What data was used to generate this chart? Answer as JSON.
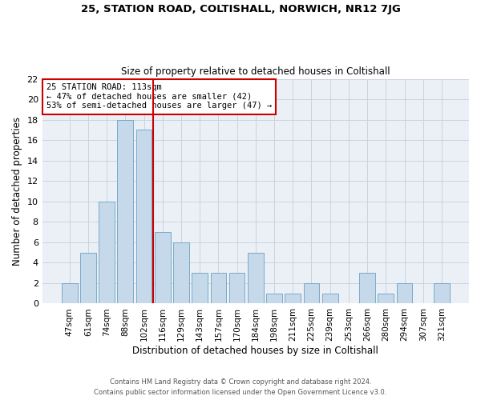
{
  "title": "25, STATION ROAD, COLTISHALL, NORWICH, NR12 7JG",
  "subtitle": "Size of property relative to detached houses in Coltishall",
  "xlabel": "Distribution of detached houses by size in Coltishall",
  "ylabel": "Number of detached properties",
  "categories": [
    "47sqm",
    "61sqm",
    "74sqm",
    "88sqm",
    "102sqm",
    "116sqm",
    "129sqm",
    "143sqm",
    "157sqm",
    "170sqm",
    "184sqm",
    "198sqm",
    "211sqm",
    "225sqm",
    "239sqm",
    "253sqm",
    "266sqm",
    "280sqm",
    "294sqm",
    "307sqm",
    "321sqm"
  ],
  "values": [
    2,
    5,
    10,
    18,
    17,
    7,
    6,
    3,
    3,
    3,
    5,
    1,
    1,
    2,
    1,
    0,
    3,
    1,
    2,
    0,
    2
  ],
  "bar_color": "#c6d9ea",
  "bar_edge_color": "#7aaac8",
  "grid_color": "#c8d4e0",
  "background_color": "#eaf0f6",
  "vline_x": 5.0,
  "vline_color": "#cc0000",
  "annotation_line1": "25 STATION ROAD: 113sqm",
  "annotation_line2": "← 47% of detached houses are smaller (42)",
  "annotation_line3": "53% of semi-detached houses are larger (47) →",
  "annotation_box_color": "white",
  "annotation_box_edge_color": "#cc0000",
  "ylim": [
    0,
    22
  ],
  "yticks": [
    0,
    2,
    4,
    6,
    8,
    10,
    12,
    14,
    16,
    18,
    20,
    22
  ],
  "footnote1": "Contains HM Land Registry data © Crown copyright and database right 2024.",
  "footnote2": "Contains public sector information licensed under the Open Government Licence v3.0."
}
